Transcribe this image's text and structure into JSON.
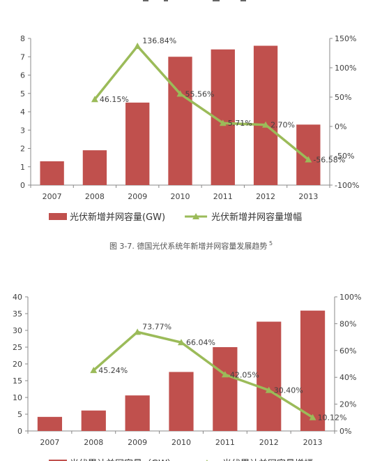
{
  "chart_data": [
    {
      "type": "bar",
      "categories": [
        "2007",
        "2008",
        "2009",
        "2010",
        "2011",
        "2012",
        "2013"
      ],
      "series": [
        {
          "name": "光伏新增并网容量(GW)",
          "type": "bar",
          "axis": "left",
          "color": "#c0504d",
          "values": [
            1.3,
            1.9,
            4.5,
            7.0,
            7.4,
            7.6,
            3.3
          ]
        },
        {
          "name": "光伏新增并网容量增幅",
          "type": "line",
          "axis": "right",
          "color": "#9bbb59",
          "values": [
            null,
            46.15,
            136.84,
            55.56,
            5.71,
            2.7,
            -56.58
          ],
          "labels": [
            "",
            "46.15%",
            "136.84%",
            "55.56%",
            "5.71%",
            "2.70%",
            "-56.58%"
          ]
        }
      ],
      "ylim_left": [
        0,
        8
      ],
      "yticks_left": [
        "0",
        "1",
        "2",
        "3",
        "4",
        "5",
        "6",
        "7",
        "8"
      ],
      "ylim_right": [
        -100,
        150
      ],
      "yticks_right": [
        "-100%",
        "-50%",
        "0%",
        "50%",
        "100%",
        "150%"
      ],
      "legend_position": "bottom",
      "caption": "图 3-7. 德国光伏系统年新增并网容量发展趋势",
      "caption_sup": "5"
    },
    {
      "type": "bar",
      "categories": [
        "2007",
        "2008",
        "2009",
        "2010",
        "2011",
        "2012",
        "2013"
      ],
      "series": [
        {
          "name": "光伏累计并网容量（GW）",
          "type": "bar",
          "axis": "left",
          "color": "#c0504d",
          "values": [
            4.2,
            6.1,
            10.6,
            17.6,
            25.0,
            32.6,
            35.9
          ]
        },
        {
          "name": "光伏累计并网容量增幅",
          "type": "line",
          "axis": "right",
          "color": "#9bbb59",
          "values": [
            null,
            45.24,
            73.77,
            66.04,
            42.05,
            30.4,
            10.12
          ],
          "labels": [
            "",
            "45.24%",
            "73.77%",
            "66.04%",
            "42.05%",
            "30.40%",
            "10.12%"
          ]
        }
      ],
      "ylim_left": [
        0,
        40
      ],
      "yticks_left": [
        "0",
        "5",
        "10",
        "15",
        "20",
        "25",
        "30",
        "35",
        "40"
      ],
      "ylim_right": [
        0,
        100
      ],
      "yticks_right": [
        "0%",
        "20%",
        "40%",
        "60%",
        "80%",
        "100%"
      ],
      "legend_position": "bottom"
    }
  ]
}
